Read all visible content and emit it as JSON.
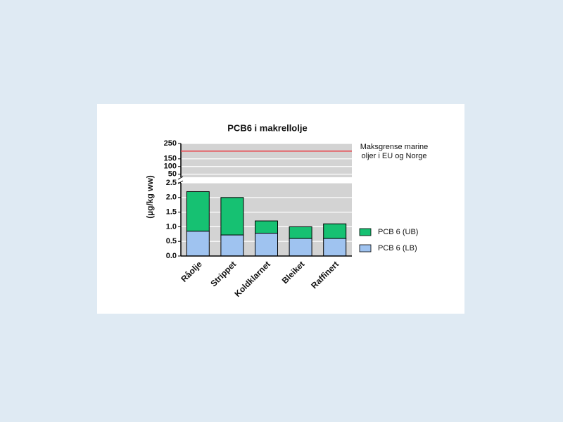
{
  "chart_data": {
    "type": "stacked_bar_broken_axis",
    "title": "PCB6 i makrellolje",
    "y_label": "(µg/kg ww)",
    "categories": [
      "Råolje",
      "Strippet",
      "Koldklarnet",
      "Bleiket",
      "Raffinert"
    ],
    "series": [
      {
        "name": "PCB 6 (LB)",
        "color": "#9fc3f0",
        "values": [
          0.85,
          0.72,
          0.78,
          0.6,
          0.6
        ]
      },
      {
        "name": "PCB 6 (UB)",
        "color": "#16c172",
        "values": [
          1.35,
          1.28,
          0.42,
          0.4,
          0.5
        ]
      }
    ],
    "ylim": [
      0,
      2.5
    ],
    "yticks": [
      {
        "value": 0,
        "label": "0.0"
      },
      0.5,
      {
        "value": 1,
        "label": "1.0"
      },
      1.5,
      {
        "value": 2,
        "label": "2.0"
      },
      2.5
    ],
    "upper_ylim": [
      30,
      250
    ],
    "upper_yticks": [
      50,
      100,
      150,
      250
    ],
    "reference_line": {
      "value": 200,
      "color": "#e8474f",
      "label_lines": [
        "Maksgrense marine",
        "oljer i EU og Norge"
      ]
    },
    "grid": true
  }
}
